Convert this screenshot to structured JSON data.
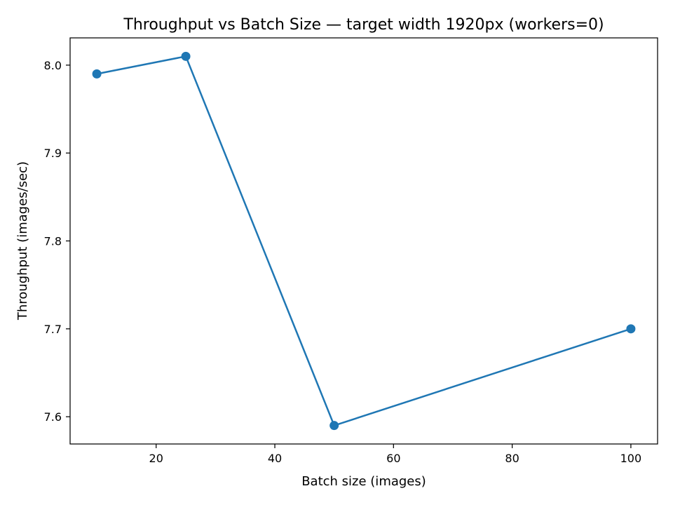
{
  "chart_data": {
    "type": "line",
    "title": "Throughput vs Batch Size — target width 1920px (workers=0)",
    "xlabel": "Batch size (images)",
    "ylabel": "Throughput (images/sec)",
    "xlim": [
      5.5,
      104.5
    ],
    "ylim": [
      7.569,
      8.031
    ],
    "xticks": [
      20,
      40,
      60,
      80,
      100
    ],
    "yticks": [
      7.6,
      7.7,
      7.8,
      7.9,
      8.0
    ],
    "xtick_labels": [
      "20",
      "40",
      "60",
      "80",
      "100"
    ],
    "ytick_labels": [
      "7.6",
      "7.7",
      "7.8",
      "7.9",
      "8.0"
    ],
    "grid": false,
    "line_color": "#1f77b4",
    "series": [
      {
        "x": [
          10,
          25,
          50,
          100
        ],
        "y": [
          7.99,
          8.01,
          7.59,
          7.7
        ]
      }
    ]
  }
}
